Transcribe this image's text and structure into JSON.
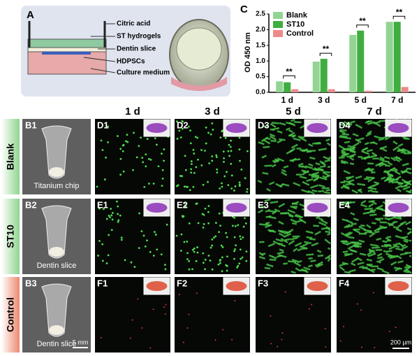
{
  "panel_a": {
    "label": "A",
    "annotations": [
      "Citric acid",
      "ST hydrogels",
      "Dentin slice",
      "HDPSCs",
      "Culture medium"
    ]
  },
  "chart_data": {
    "type": "bar",
    "panel_label": "C",
    "y_label": "OD 450 nm",
    "categories": [
      "1 d",
      "3 d",
      "5 d",
      "7 d"
    ],
    "series": [
      {
        "name": "Blank",
        "color": "#93d493",
        "values": [
          0.35,
          0.98,
          1.83,
          2.25
        ]
      },
      {
        "name": "ST10",
        "color": "#3fae3f",
        "values": [
          0.32,
          1.07,
          1.97,
          2.25
        ]
      },
      {
        "name": "Control",
        "color": "#ec8a8a",
        "values": [
          0.1,
          0.1,
          0.05,
          0.17
        ]
      }
    ],
    "ylim": [
      0,
      2.5
    ],
    "yticks": [
      {
        "value": 0,
        "label": "0.0"
      },
      0.5,
      {
        "value": 1,
        "label": "1.0"
      },
      1.5,
      {
        "value": 2,
        "label": "2.0"
      },
      2.5
    ],
    "significance": [
      "**",
      "**",
      "**",
      "**"
    ],
    "legend": "top-left"
  },
  "grid": {
    "columns": [
      "1 d",
      "3 d",
      "5 d",
      "7 d"
    ],
    "rows": [
      {
        "label": "Blank",
        "photo_label": "B1",
        "photo_caption": "Titanium chip",
        "image_labels": [
          "D1",
          "D2",
          "D3",
          "D4"
        ]
      },
      {
        "label": "ST10",
        "photo_label": "B2",
        "photo_caption": "Dentin slice",
        "image_labels": [
          "E1",
          "E2",
          "E3",
          "E4"
        ]
      },
      {
        "label": "Control",
        "photo_label": "B3",
        "photo_caption": "Dentin slice",
        "image_labels": [
          "F1",
          "F2",
          "F3",
          "F4"
        ]
      }
    ],
    "scale_bars": [
      "5 mm",
      "200 µm"
    ]
  }
}
